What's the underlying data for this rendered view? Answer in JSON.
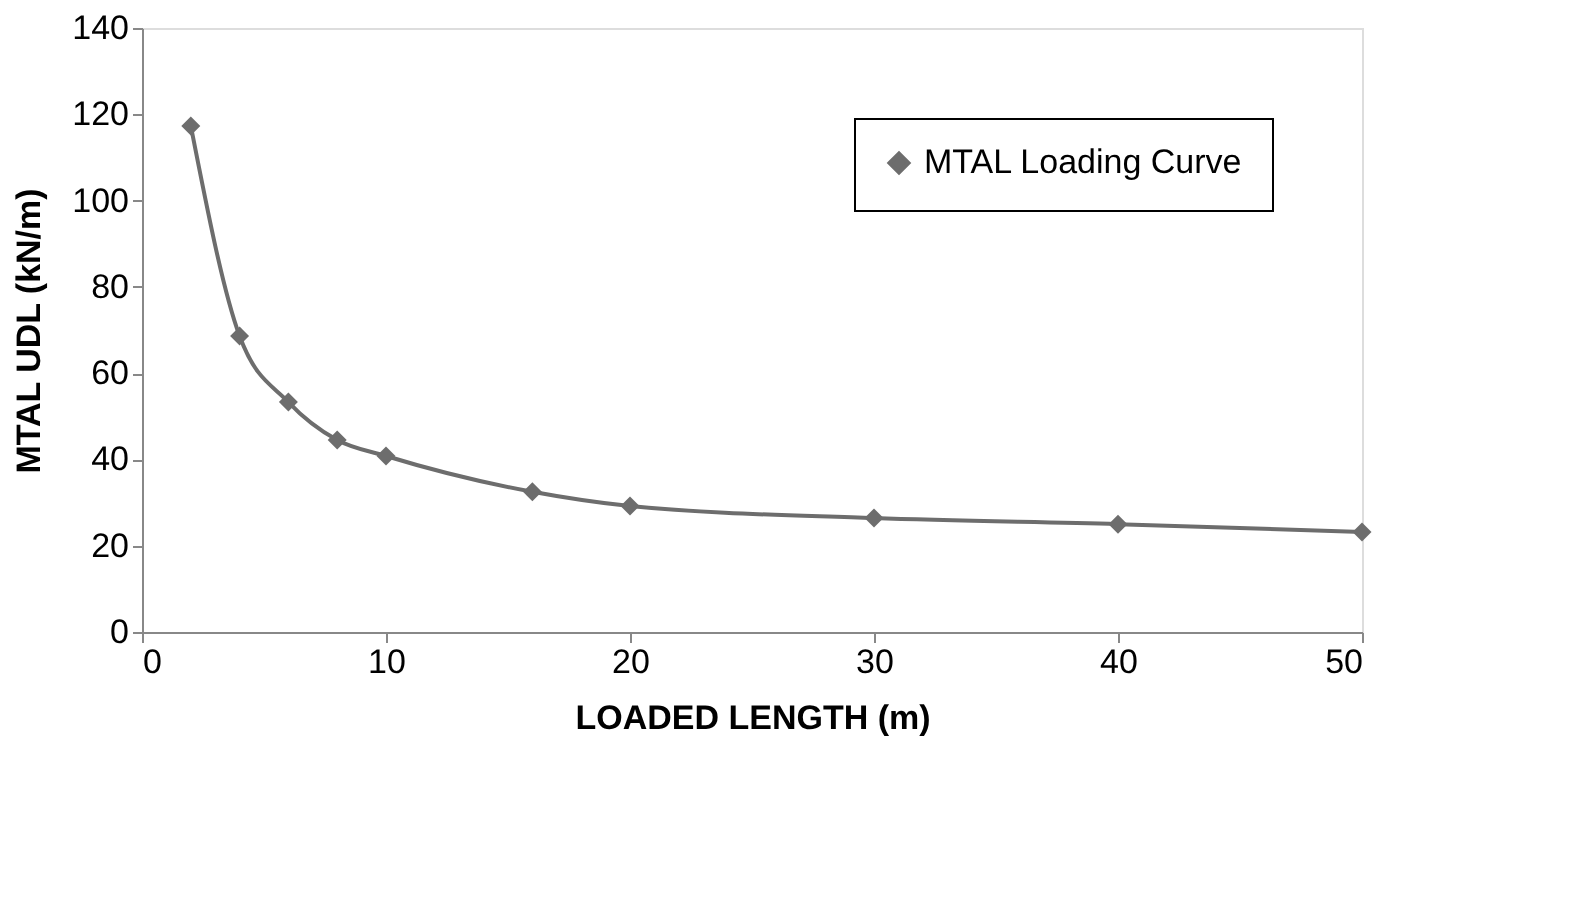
{
  "chart_data": {
    "type": "line",
    "xlabel": "LOADED LENGTH (m)",
    "ylabel": "MTAL UDL (kN/m)",
    "x": [
      2,
      4,
      6,
      8,
      10,
      16,
      20,
      30,
      40,
      50
    ],
    "series": [
      {
        "name": "MTAL Loading Curve",
        "color": "#6d6d6d",
        "values": [
          117.3,
          68.6,
          53.3,
          44.5,
          40.8,
          32.5,
          29.2,
          26.4,
          25.0,
          23.2
        ]
      }
    ],
    "xlim": [
      0,
      50
    ],
    "xticks": [
      0,
      10,
      20,
      30,
      40,
      50
    ],
    "ylim": [
      0,
      140
    ],
    "yticks": [
      0,
      20,
      40,
      60,
      80,
      100,
      120,
      140
    ],
    "grid": false,
    "legend": "top right",
    "marker": "diamond",
    "line_style": "solid"
  }
}
